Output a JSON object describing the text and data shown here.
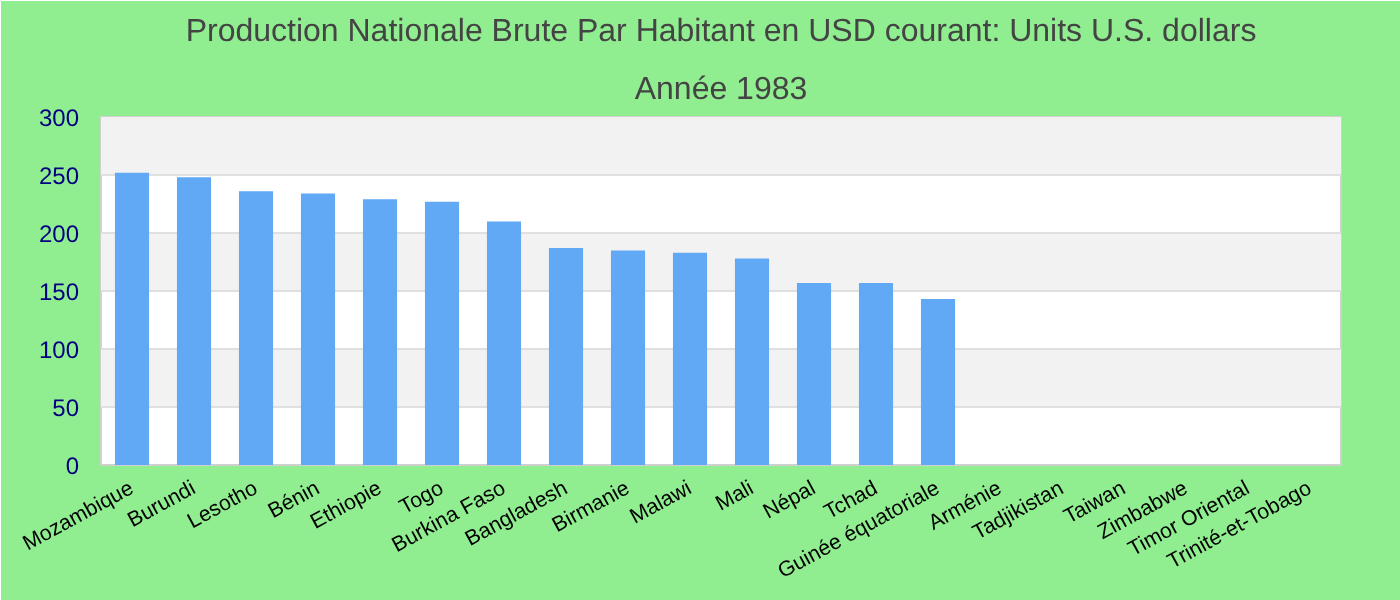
{
  "chart_data": {
    "type": "bar",
    "title": "Production Nationale Brute Par Habitant en USD courant: Units U.S. dollars",
    "subtitle": "Année 1983",
    "categories": [
      "Mozambique",
      "Burundi",
      "Lesotho",
      "Bénin",
      "Ethiopie",
      "Togo",
      "Burkina Faso",
      "Bangladesh",
      "Birmanie",
      "Malawi",
      "Mali",
      "Népal",
      "Tchad",
      "Guinée équatoriale",
      "Arménie",
      "Tadjikistan",
      "Taiwan",
      "Zimbabwe",
      "Timor Oriental",
      "Trinité-et-Tobago"
    ],
    "values": [
      252,
      248,
      236,
      234,
      229,
      227,
      210,
      187,
      185,
      183,
      178,
      157,
      157,
      143,
      null,
      null,
      null,
      null,
      null,
      null
    ],
    "color": "#61a8f5",
    "ylim": [
      0,
      300
    ],
    "yticks": [
      0,
      50,
      100,
      150,
      200,
      250,
      300
    ],
    "grid": "y"
  }
}
